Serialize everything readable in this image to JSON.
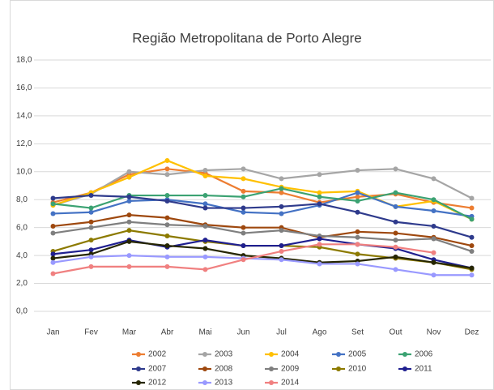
{
  "chart_data": {
    "type": "line",
    "title": "Região Metropolitana de Porto Alegre",
    "categories": [
      "Jan",
      "Fev",
      "Mar",
      "Abr",
      "Mai",
      "Jun",
      "Jul",
      "Ago",
      "Set",
      "Out",
      "Nov",
      "Dez"
    ],
    "ylim": [
      0,
      18
    ],
    "yticks": [
      {
        "value": 0,
        "label": "0,0"
      },
      {
        "value": 2,
        "label": "2,0"
      },
      {
        "value": 4,
        "label": "4,0"
      },
      {
        "value": 6,
        "label": "6,0"
      },
      {
        "value": 8,
        "label": "8,0"
      },
      {
        "value": 10,
        "label": "10,0"
      },
      {
        "value": 12,
        "label": "12,0"
      },
      {
        "value": 14,
        "label": "14,0"
      },
      {
        "value": 16,
        "label": "16,0"
      },
      {
        "value": 18,
        "label": "18,0"
      }
    ],
    "grid": true,
    "series": [
      {
        "name": "2002",
        "color": "#ED7D31",
        "values": [
          7.8,
          8.5,
          9.8,
          10.2,
          9.9,
          8.6,
          8.5,
          7.8,
          8.2,
          8.4,
          7.8,
          7.4
        ]
      },
      {
        "name": "2003",
        "color": "#A5A5A5",
        "values": [
          7.6,
          8.4,
          10.0,
          9.8,
          10.1,
          10.2,
          9.5,
          9.8,
          10.1,
          10.2,
          9.5,
          8.1
        ]
      },
      {
        "name": "2004",
        "color": "#FFC000",
        "values": [
          7.6,
          8.5,
          9.6,
          10.8,
          9.7,
          9.5,
          8.9,
          8.5,
          8.6,
          7.5,
          7.9,
          6.6
        ]
      },
      {
        "name": "2005",
        "color": "#4472C4",
        "values": [
          7.0,
          7.1,
          7.9,
          8.0,
          7.7,
          7.1,
          7.0,
          7.6,
          8.5,
          7.5,
          7.2,
          6.8
        ]
      },
      {
        "name": "2006",
        "color": "#3BA272",
        "values": [
          7.7,
          7.4,
          8.3,
          8.3,
          8.3,
          8.2,
          8.8,
          8.2,
          7.9,
          8.5,
          8.0,
          6.6
        ]
      },
      {
        "name": "2007",
        "color": "#2E3A8C",
        "values": [
          8.1,
          8.3,
          8.2,
          7.9,
          7.4,
          7.4,
          7.5,
          7.7,
          7.1,
          6.4,
          6.1,
          5.3
        ]
      },
      {
        "name": "2008",
        "color": "#9E480E",
        "values": [
          6.1,
          6.4,
          6.9,
          6.7,
          6.2,
          6.0,
          6.0,
          5.3,
          5.7,
          5.6,
          5.3,
          4.7
        ]
      },
      {
        "name": "2009",
        "color": "#7F7F7F",
        "values": [
          5.6,
          6.0,
          6.4,
          6.2,
          6.1,
          5.6,
          5.8,
          5.4,
          5.3,
          5.1,
          5.2,
          4.3
        ]
      },
      {
        "name": "2010",
        "color": "#8C7A00",
        "values": [
          4.3,
          5.1,
          5.8,
          5.4,
          5.0,
          4.7,
          4.7,
          4.6,
          4.1,
          3.8,
          3.5,
          3.0
        ]
      },
      {
        "name": "2011",
        "color": "#1F1F8F",
        "values": [
          4.1,
          4.4,
          5.1,
          4.6,
          5.1,
          4.7,
          4.7,
          5.2,
          4.8,
          4.5,
          3.7,
          3.1
        ]
      },
      {
        "name": "2012",
        "color": "#262600",
        "values": [
          3.8,
          4.1,
          5.0,
          4.7,
          4.5,
          4.0,
          3.8,
          3.5,
          3.6,
          3.9,
          3.5,
          3.1
        ]
      },
      {
        "name": "2013",
        "color": "#9999FF",
        "values": [
          3.5,
          3.9,
          4.0,
          3.9,
          3.9,
          3.8,
          3.7,
          3.4,
          3.4,
          3.0,
          2.6,
          2.6
        ]
      },
      {
        "name": "2014",
        "color": "#F08080",
        "values": [
          2.7,
          3.2,
          3.2,
          3.2,
          3.0,
          3.7,
          4.3,
          4.8,
          4.8,
          4.6,
          4.2,
          null
        ]
      }
    ]
  }
}
